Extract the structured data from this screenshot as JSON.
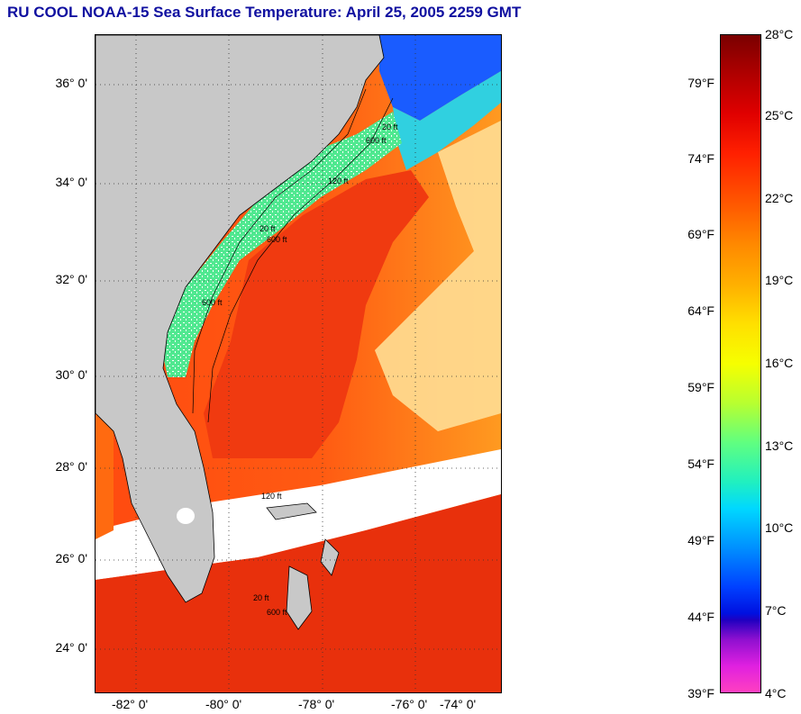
{
  "title": "RU COOL  NOAA-15  Sea Surface Temperature:  April 25, 2005 2259 GMT",
  "map": {
    "lat_labels": [
      "36° 0'",
      "34° 0'",
      "32° 0'",
      "30° 0'",
      "28° 0'",
      "26° 0'",
      "24° 0'"
    ],
    "lon_labels": [
      "-82° 0'",
      "-80° 0'",
      "-78° 0'",
      "-76° 0'",
      "-74° 0'"
    ],
    "contour_labels": [
      "20 ft",
      "600 ft",
      "120 ft",
      "600 ft",
      "20 ft",
      "600 ft",
      "120 ft",
      "20 ft",
      "600 ft"
    ],
    "colors": {
      "land": "#c8c8c8",
      "cloud": "#ffffff",
      "warm": "#f03010",
      "orange": "#ff7a10",
      "cool": "#40e0a0"
    }
  },
  "colorbar": {
    "fahrenheit": [
      "79°F",
      "74°F",
      "69°F",
      "64°F",
      "59°F",
      "54°F",
      "49°F",
      "44°F",
      "39°F"
    ],
    "celsius": [
      "28°C",
      "25°C",
      "22°C",
      "19°C",
      "16°C",
      "13°C",
      "10°C",
      "7°C",
      "4°C"
    ]
  }
}
